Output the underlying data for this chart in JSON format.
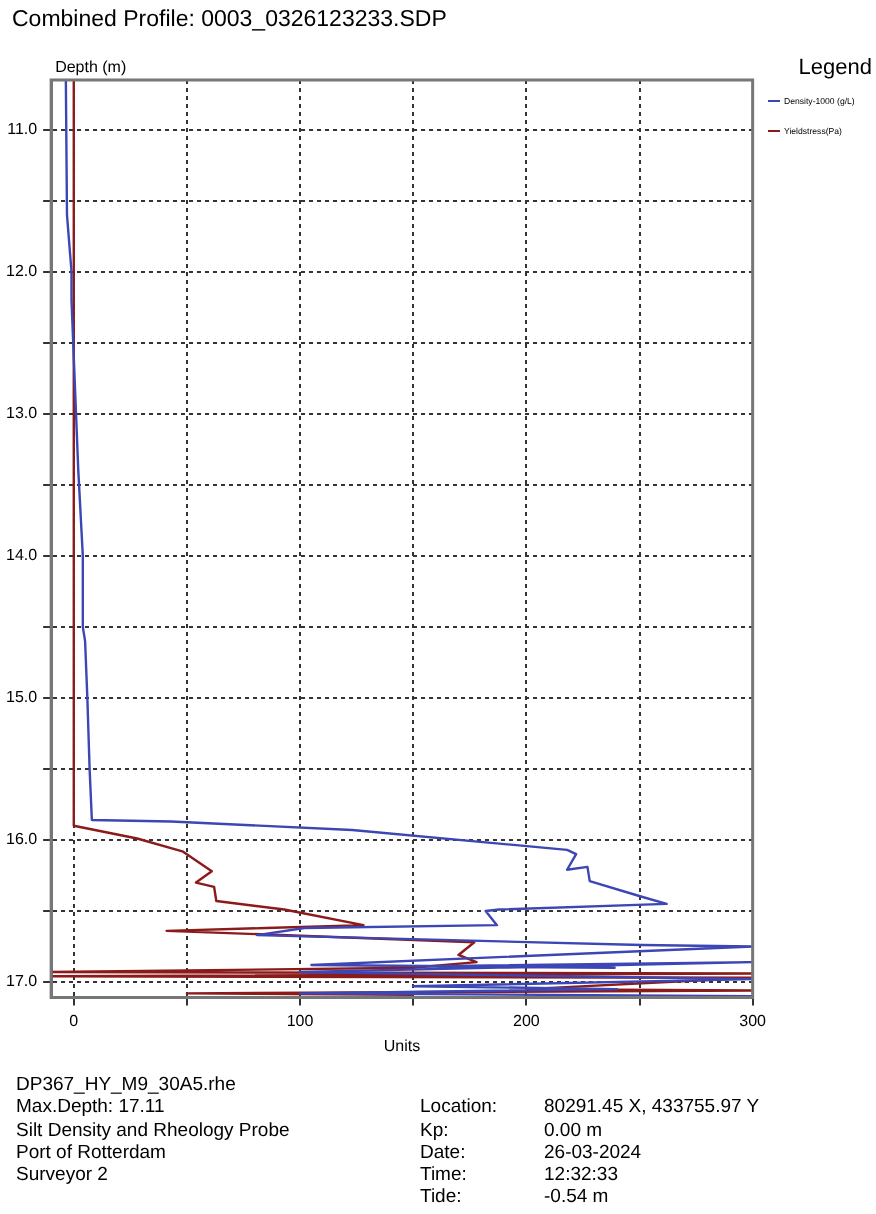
{
  "chart_data": {
    "type": "line",
    "title": "Combined Profile: 0003_0326123233.SDP",
    "xlabel": "Units",
    "ylabel": "Depth (m)",
    "legend_title": "Legend",
    "legend": "top right",
    "grid": true,
    "xlim": [
      -10,
      300
    ],
    "xticks": [
      0,
      {
        "value": 50,
        "label": null
      },
      100,
      {
        "value": 150,
        "label": null
      },
      200,
      {
        "value": 250,
        "label": null
      },
      300
    ],
    "ylim": [
      17.11,
      10.65
    ],
    "yticks": [
      {
        "value": 11,
        "label": "11.0"
      },
      {
        "value": 11.5,
        "label": null
      },
      {
        "value": 12,
        "label": "12.0"
      },
      {
        "value": 12.5,
        "label": null
      },
      {
        "value": 13,
        "label": "13.0"
      },
      {
        "value": 13.5,
        "label": null
      },
      {
        "value": 14,
        "label": "14.0"
      },
      {
        "value": 14.5,
        "label": null
      },
      {
        "value": 15,
        "label": "15.0"
      },
      {
        "value": 15.5,
        "label": null
      },
      {
        "value": 16,
        "label": "16.0"
      },
      {
        "value": 16.5,
        "label": null
      },
      {
        "value": 17,
        "label": "17.0"
      }
    ],
    "series": [
      {
        "name": "Density-1000 (g/L)",
        "color": "#3c46b4",
        "x": [
          -3.5,
          -3,
          -2,
          -1,
          -1,
          0,
          1,
          2,
          3,
          4,
          4,
          5,
          6,
          7,
          8,
          43,
          123,
          218,
          222,
          218,
          227,
          228,
          251,
          262,
          188,
          182,
          187,
          102,
          81,
          251,
          300,
          105,
          239,
          150,
          300,
          100,
          300,
          150,
          240,
          100,
          300
        ],
        "values": [
          10.65,
          11.6,
          11.8,
          12.0,
          12.2,
          12.6,
          13.0,
          13.4,
          13.7,
          14.0,
          14.5,
          14.6,
          15.0,
          15.5,
          15.86,
          15.87,
          15.93,
          16.07,
          16.1,
          16.21,
          16.19,
          16.29,
          16.4,
          16.45,
          16.49,
          16.5,
          16.6,
          16.62,
          16.67,
          16.74,
          16.75,
          16.88,
          16.9,
          16.89,
          16.86,
          16.93,
          16.98,
          17.03,
          17.05,
          17.08,
          17.1
        ]
      },
      {
        "name": "Yieldstress(Pa)",
        "color": "#8b1a1a",
        "x": [
          0,
          0,
          28,
          48,
          61,
          54,
          62,
          63,
          93,
          128,
          85,
          41,
          177,
          170,
          178,
          150,
          -10,
          300,
          -10,
          300,
          200,
          300,
          50,
          150
        ],
        "values": [
          10.65,
          15.9,
          15.99,
          16.08,
          16.22,
          16.3,
          16.33,
          16.43,
          16.49,
          16.6,
          16.62,
          16.64,
          16.72,
          16.81,
          16.86,
          16.9,
          16.93,
          16.94,
          16.96,
          16.97,
          17.05,
          17.06,
          17.08,
          17.09
        ]
      }
    ],
    "annotations": [
      "DP367_HY_M9_30A5.rhe",
      "Max.Depth: 17.11",
      "Silt Density and Rheology Probe",
      "Port of Rotterdam",
      "Surveyor 2",
      "Location: 80291.45 X, 433755.97 Y",
      "Kp: 0.00 m",
      "Date: 26-03-2024",
      "Time: 12:32:33",
      "Tide: -0.54 m"
    ]
  }
}
